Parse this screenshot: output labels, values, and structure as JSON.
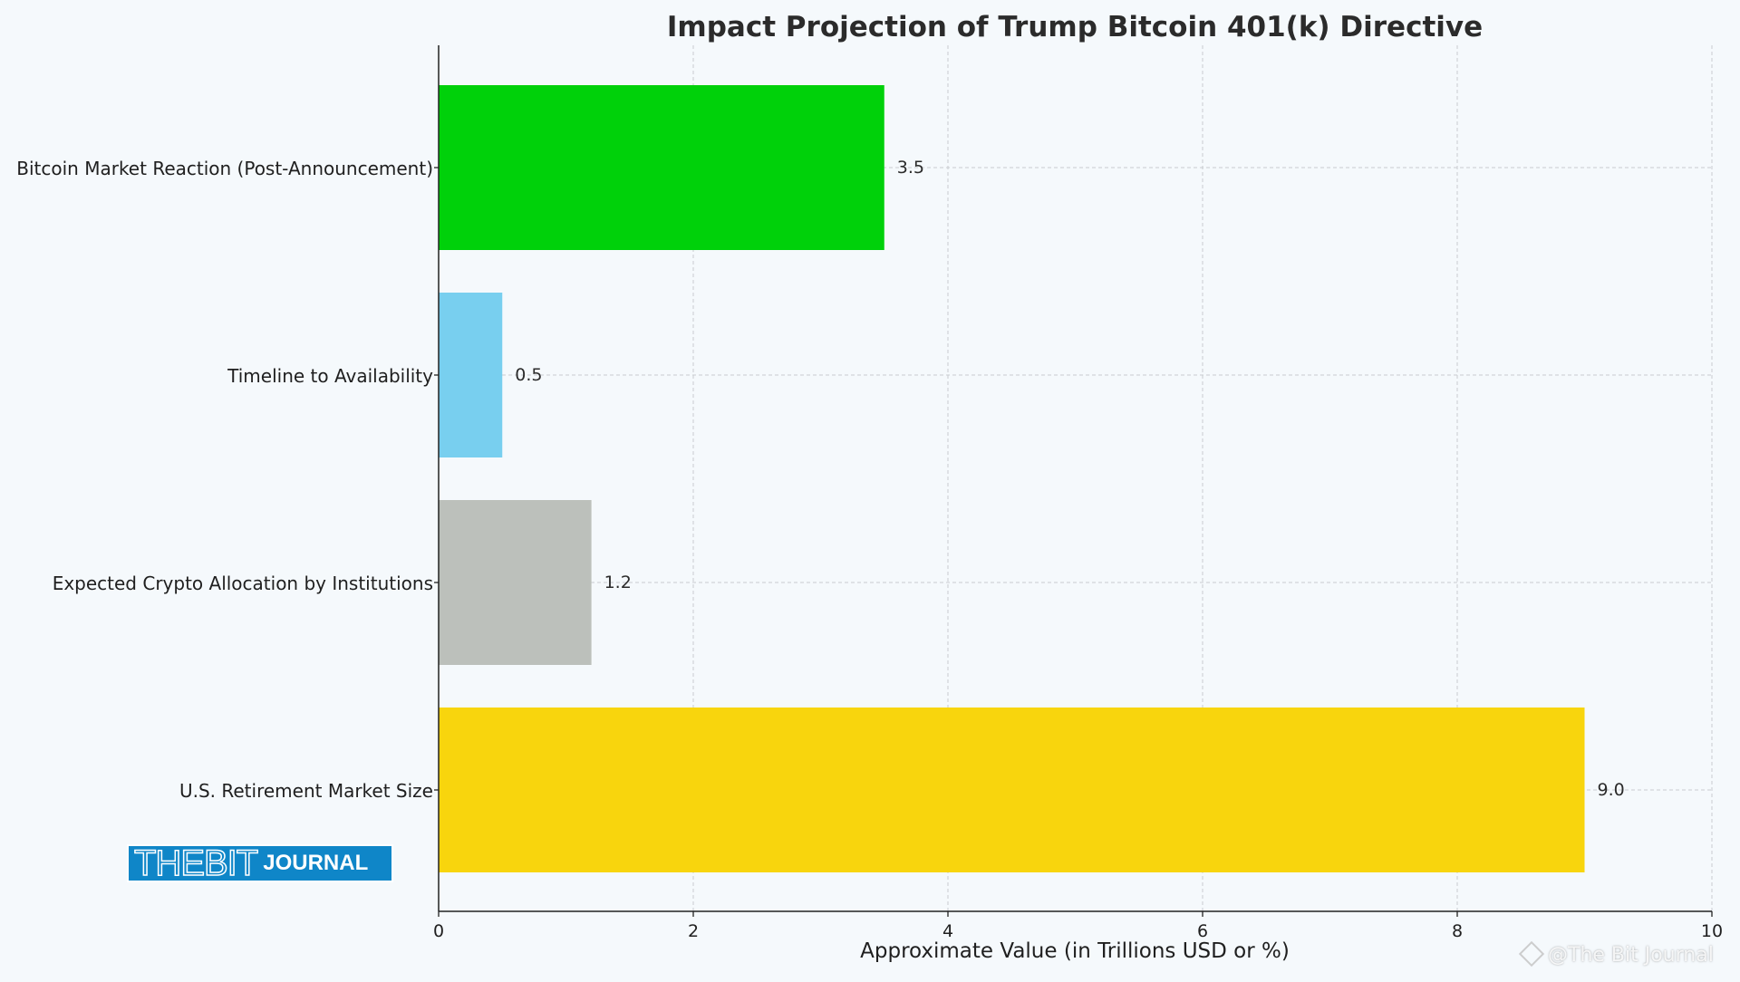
{
  "chart_data": {
    "type": "bar",
    "orientation": "horizontal",
    "title": "Impact Projection of Trump Bitcoin 401(k) Directive",
    "xlabel": "Approximate Value (in Trillions USD or %)",
    "ylabel": "",
    "xlim": [
      0,
      10
    ],
    "xticks": [
      0,
      2,
      4,
      6,
      8,
      10
    ],
    "grid": true,
    "categories": [
      "Bitcoin Market Reaction (Post-Announcement)",
      "Timeline to Availability",
      "Expected Crypto Allocation by Institutions",
      "U.S. Retirement Market Size"
    ],
    "values": [
      3.5,
      0.5,
      1.2,
      9.0
    ],
    "value_labels": [
      "3.5",
      "0.5",
      "1.2",
      "9.0"
    ],
    "colors": [
      "#00d10a",
      "#78cfef",
      "#bcc0bb",
      "#f8d50d"
    ]
  },
  "logo": {
    "text_main": "THEBIT",
    "text_sub": "JOURNAL"
  },
  "watermark": {
    "text": "@The Bit Journal"
  }
}
